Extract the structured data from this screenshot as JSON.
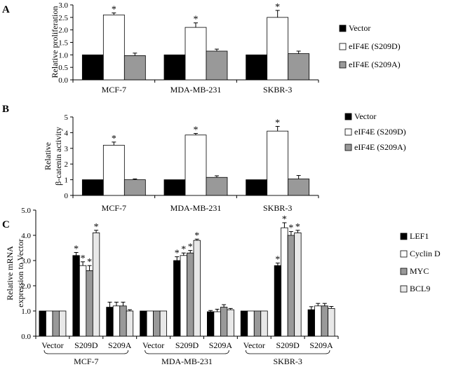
{
  "colors": {
    "black": "#000000",
    "white": "#ffffff",
    "gray": "#999999",
    "lightgray": "#e8e8e8"
  },
  "chart_data": [
    {
      "panel": "A",
      "type": "bar",
      "ylabel": "Relative proliferation",
      "ylim": [
        0,
        3.0
      ],
      "yticks": [
        "0.0",
        "0.5",
        "1.0",
        "1.5",
        "2.0",
        "2.5",
        "3.0"
      ],
      "categories": [
        "MCF-7",
        "MDA-MB-231",
        "SKBR-3"
      ],
      "legend": [
        "Vector",
        "eIF4E (S209D)",
        "eIF4E (S209A)"
      ],
      "series": [
        {
          "name": "Vector",
          "color": "#000000",
          "values": [
            1.0,
            1.0,
            1.0
          ],
          "errors": [
            0,
            0,
            0
          ],
          "stars": [
            false,
            false,
            false
          ]
        },
        {
          "name": "eIF4E (S209D)",
          "color": "#ffffff",
          "values": [
            2.6,
            2.1,
            2.5
          ],
          "errors": [
            0.08,
            0.18,
            0.28
          ],
          "stars": [
            true,
            true,
            true
          ]
        },
        {
          "name": "eIF4E (S209A)",
          "color": "#999999",
          "values": [
            0.97,
            1.15,
            1.05
          ],
          "errors": [
            0.1,
            0.08,
            0.1
          ],
          "stars": [
            false,
            false,
            false
          ]
        }
      ]
    },
    {
      "panel": "B",
      "type": "bar",
      "ylabel": "Relative",
      "ylabel2": "β-catenin activity",
      "ylim": [
        0,
        5
      ],
      "yticks": [
        "0",
        "1",
        "2",
        "3",
        "4",
        "5"
      ],
      "categories": [
        "MCF-7",
        "MDA-MB-231",
        "SKBR-3"
      ],
      "legend": [
        "Vector",
        "eIF4E (S209D)",
        "eIF4E (S209A)"
      ],
      "series": [
        {
          "name": "Vector",
          "color": "#000000",
          "values": [
            1.0,
            1.0,
            1.0
          ],
          "errors": [
            0,
            0,
            0
          ],
          "stars": [
            false,
            false,
            false
          ]
        },
        {
          "name": "eIF4E (S209D)",
          "color": "#ffffff",
          "values": [
            3.2,
            3.85,
            4.1
          ],
          "errors": [
            0.2,
            0.1,
            0.3
          ],
          "stars": [
            true,
            true,
            true
          ]
        },
        {
          "name": "eIF4E (S209A)",
          "color": "#999999",
          "values": [
            1.0,
            1.15,
            1.05
          ],
          "errors": [
            0.05,
            0.1,
            0.22
          ],
          "stars": [
            false,
            false,
            false
          ]
        }
      ]
    },
    {
      "panel": "C",
      "type": "bar",
      "ylabel": "Relative mRNA",
      "ylabel2": "expression to Vector",
      "ylim": [
        0,
        5.0
      ],
      "yticks": [
        "0.0",
        "1.0",
        "2.0",
        "3.0",
        "4.0",
        "5.0"
      ],
      "categories": [
        "Vector",
        "S209D",
        "S209A",
        "Vector",
        "S209D",
        "S209A",
        "Vector",
        "S209D",
        "S209A"
      ],
      "groups": [
        "MCF-7",
        "MDA-MB-231",
        "SKBR-3"
      ],
      "legend": [
        "LEF1",
        "Cyclin D",
        "MYC",
        "BCL9"
      ],
      "series": [
        {
          "name": "LEF1",
          "color": "#000000",
          "values": [
            1.0,
            3.2,
            1.15,
            1.0,
            3.0,
            0.97,
            1.0,
            2.8,
            1.05
          ],
          "errors": [
            0,
            0.12,
            0.2,
            0,
            0.15,
            0.05,
            0,
            0.1,
            0.12
          ],
          "stars": [
            false,
            true,
            false,
            false,
            true,
            false,
            false,
            true,
            false
          ]
        },
        {
          "name": "Cyclin D",
          "color": "#ffffff",
          "values": [
            1.0,
            2.8,
            1.2,
            1.0,
            3.2,
            0.97,
            1.0,
            4.3,
            1.2
          ],
          "errors": [
            0,
            0.15,
            0.15,
            0,
            0.1,
            0.1,
            0,
            0.2,
            0.1
          ],
          "stars": [
            false,
            true,
            false,
            false,
            true,
            false,
            false,
            true,
            false
          ]
        },
        {
          "name": "MYC",
          "color": "#999999",
          "values": [
            1.0,
            2.6,
            1.2,
            1.0,
            3.3,
            1.15,
            1.0,
            4.0,
            1.2
          ],
          "errors": [
            0,
            0.2,
            0.15,
            0,
            0.1,
            0.1,
            0,
            0.15,
            0.1
          ],
          "stars": [
            false,
            true,
            false,
            false,
            true,
            false,
            false,
            true,
            false
          ]
        },
        {
          "name": "BCL9",
          "color": "#e8e8e8",
          "values": [
            1.0,
            4.1,
            1.0,
            1.0,
            3.8,
            1.05,
            1.0,
            4.1,
            1.1
          ],
          "errors": [
            0,
            0.1,
            0.05,
            0,
            0.05,
            0.05,
            0,
            0.1,
            0.08
          ],
          "stars": [
            false,
            true,
            false,
            false,
            true,
            false,
            false,
            true,
            false
          ]
        }
      ]
    }
  ]
}
